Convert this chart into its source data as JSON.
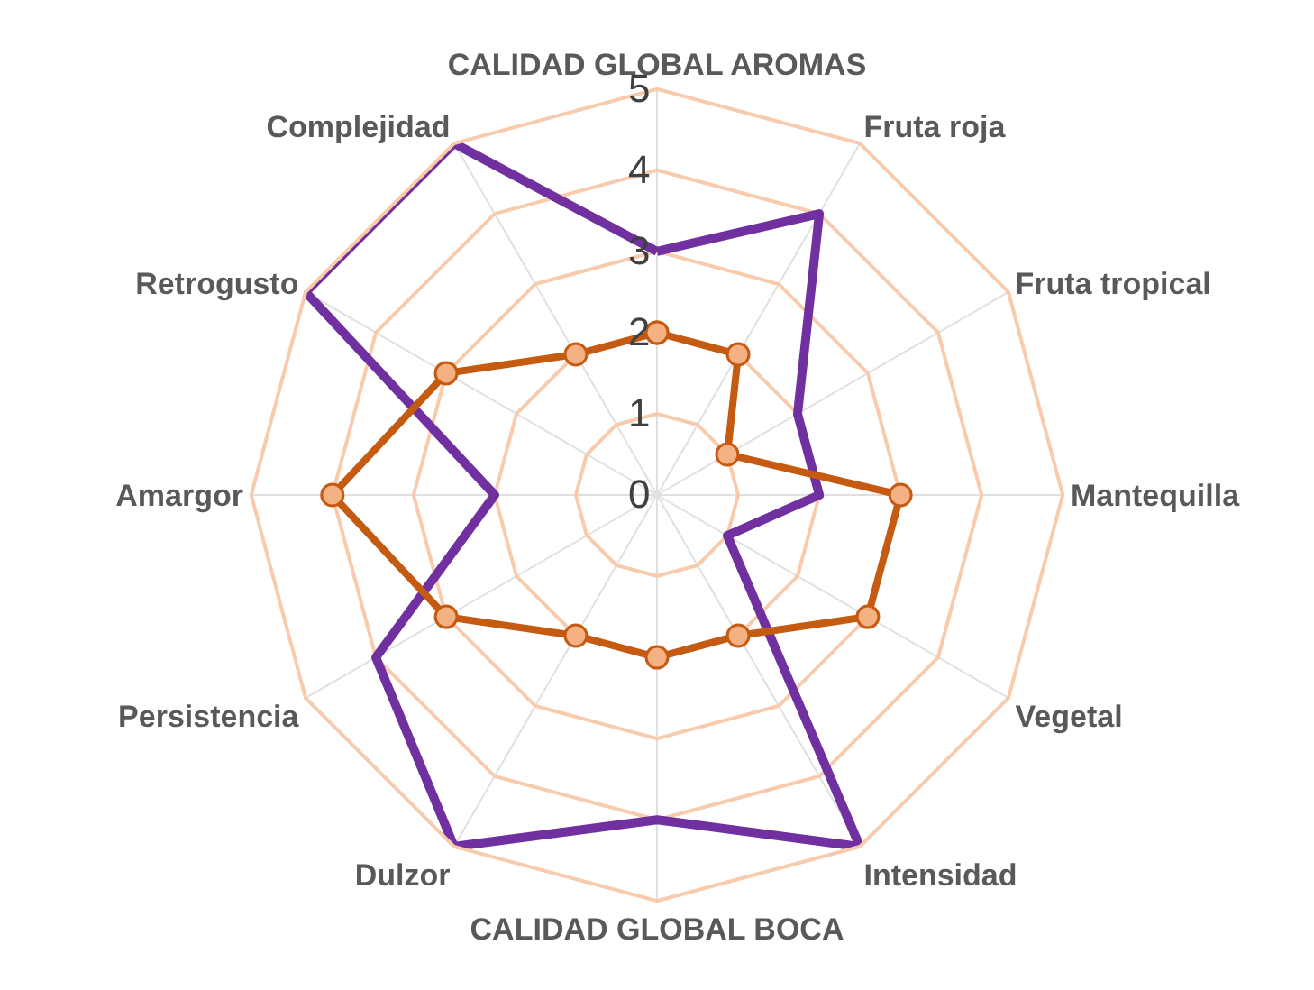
{
  "chart_data": {
    "type": "radar",
    "categories": [
      "CALIDAD GLOBAL AROMAS",
      "Fruta roja",
      "Fruta tropical",
      "Mantequilla",
      "Vegetal",
      "Intensidad",
      "CALIDAD GLOBAL BOCA",
      "Dulzor",
      "Persistencia",
      "Amargor",
      "Retrogusto",
      "Complejidad"
    ],
    "series": [
      {
        "color": "#7030a0",
        "marker": "none",
        "values": [
          3,
          4,
          2,
          2,
          1,
          5,
          4,
          5,
          4,
          2,
          5,
          5
        ]
      },
      {
        "color": "#c55a11",
        "marker": "circle",
        "values": [
          2,
          2,
          1,
          3,
          3,
          2,
          2,
          2,
          3,
          4,
          3,
          2
        ]
      }
    ],
    "ylim": [
      0,
      5
    ],
    "yticks": [
      0,
      1,
      2,
      3,
      4,
      5
    ],
    "grid": true
  }
}
